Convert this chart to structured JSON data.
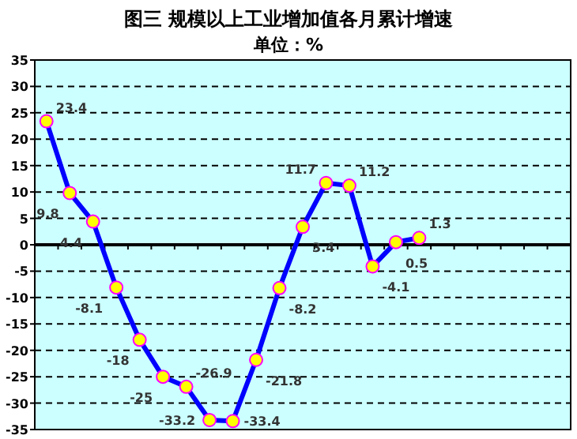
{
  "chart_data": {
    "type": "line",
    "title": "图三  规模以上工业增加值各月累计增速",
    "subtitle": "单位：%",
    "categories": [
      null,
      null,
      null,
      null,
      null,
      null,
      null,
      null,
      null,
      null,
      null,
      null,
      null,
      null,
      null,
      null,
      null,
      null,
      null,
      null,
      null,
      null,
      null
    ],
    "series": [
      {
        "color": "#0000ff",
        "values": [
          23.4,
          9.8,
          4.4,
          -8.1,
          -18,
          -25,
          -26.9,
          -33.2,
          -33.4,
          -21.8,
          -8.2,
          3.4,
          11.7,
          11.2,
          -4.1,
          0.5,
          1.3,
          null,
          null,
          null,
          null,
          null,
          null
        ]
      }
    ],
    "ylim": [
      -35,
      35
    ],
    "yticks": [
      -35,
      -30,
      -25,
      -20,
      -15,
      -10,
      -5,
      0,
      5,
      10,
      15,
      20,
      25,
      30,
      35
    ],
    "grid": "y",
    "marker": "circle",
    "data_labels": true
  }
}
